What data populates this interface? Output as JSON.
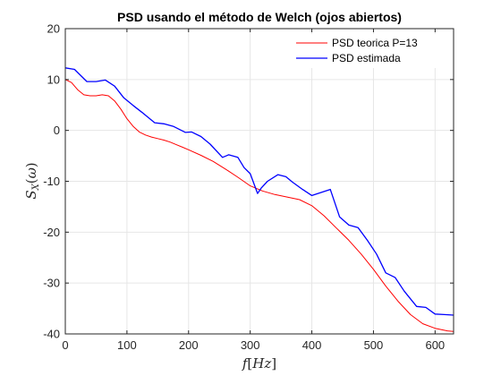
{
  "chart_data": {
    "type": "line",
    "title": "PSD usando el método de Welch (ojos abiertos)",
    "xlabel": "f[Hz]",
    "ylabel": "S_X(ω)",
    "xlim": [
      0,
      630
    ],
    "ylim": [
      -40,
      20
    ],
    "xticks": [
      0,
      100,
      200,
      300,
      400,
      500,
      600
    ],
    "yticks": [
      -40,
      -30,
      -20,
      -10,
      0,
      10,
      20
    ],
    "xtick_labels": [
      "0",
      "100",
      "200",
      "300",
      "400",
      "500",
      "600"
    ],
    "ytick_labels": [
      "-40",
      "-30",
      "-20",
      "-10",
      "0",
      "10",
      "20"
    ],
    "grid": true,
    "legend_position": "top-right",
    "series": [
      {
        "name": "PSD teorica P=13",
        "color": "#ff0000",
        "x": [
          0,
          10,
          20,
          30,
          40,
          50,
          60,
          70,
          80,
          90,
          100,
          110,
          120,
          130,
          140,
          150,
          160,
          170,
          180,
          190,
          200,
          220,
          240,
          260,
          280,
          300,
          320,
          340,
          360,
          380,
          400,
          420,
          440,
          460,
          480,
          500,
          520,
          540,
          560,
          580,
          600,
          620,
          630
        ],
        "y": [
          10,
          9.4,
          8,
          7,
          6.8,
          6.8,
          7,
          6.8,
          5.8,
          4.2,
          2.3,
          0.8,
          -0.3,
          -0.9,
          -1.3,
          -1.6,
          -1.9,
          -2.3,
          -2.8,
          -3.3,
          -3.8,
          -4.9,
          -6.1,
          -7.6,
          -9.2,
          -10.9,
          -11.9,
          -12.6,
          -13.1,
          -13.6,
          -14.8,
          -16.8,
          -19.2,
          -21.6,
          -24.3,
          -27.3,
          -30.6,
          -33.6,
          -36.2,
          -38,
          -38.9,
          -39.4,
          -39.5
        ]
      },
      {
        "name": "PSD estimada",
        "color": "#0000ff",
        "x": [
          0,
          15,
          35,
          50,
          65,
          80,
          95,
          110,
          125,
          145,
          160,
          175,
          195,
          205,
          220,
          235,
          255,
          265,
          280,
          290,
          300,
          312,
          318,
          328,
          345,
          358,
          368,
          385,
          400,
          420,
          430,
          445,
          460,
          475,
          490,
          505,
          520,
          535,
          550,
          570,
          585,
          600,
          615,
          630
        ],
        "y": [
          12.3,
          12,
          9.6,
          9.6,
          9.9,
          8.7,
          6.4,
          4.9,
          3.5,
          1.5,
          1.3,
          0.8,
          -0.4,
          -0.3,
          -1.2,
          -2.7,
          -5.3,
          -4.8,
          -5.3,
          -7.3,
          -8.5,
          -12.4,
          -11.3,
          -10,
          -8.7,
          -9.1,
          -10.1,
          -11.6,
          -12.8,
          -12,
          -11.6,
          -17,
          -18.6,
          -19.1,
          -21.6,
          -24.3,
          -28,
          -28.9,
          -31.6,
          -34.6,
          -34.8,
          -36.1,
          -36.2,
          -36.3
        ]
      }
    ]
  }
}
